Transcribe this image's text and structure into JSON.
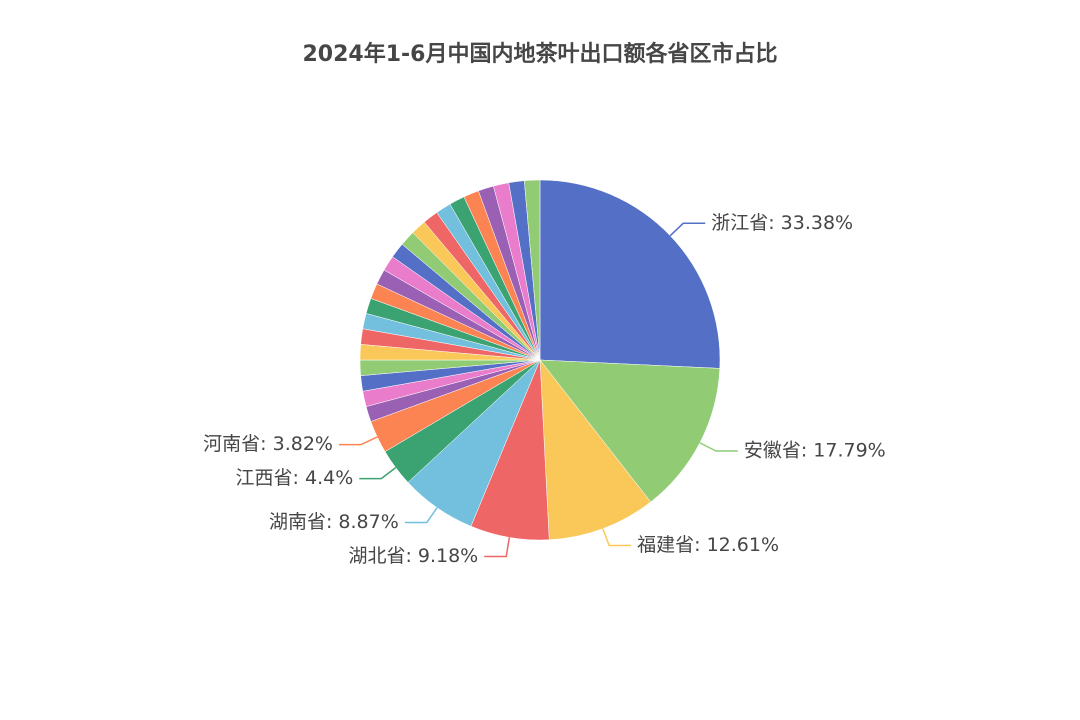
{
  "chart_data": {
    "type": "pie",
    "title": "2024年1-6月中国内地茶叶出口额各省区市占比",
    "values": [
      33.38,
      17.79,
      12.61,
      9.18,
      8.87,
      4.4,
      3.82,
      1.38,
      1.18,
      0.95,
      0.85,
      0.75,
      0.65,
      0.6,
      0.55,
      0.5,
      0.45,
      0.4,
      0.35,
      0.3,
      0.25,
      0.2,
      0.17,
      0.14,
      0.11,
      0.08,
      0.05,
      0.03,
      0.01
    ],
    "value_labels": [
      "浙江省: 33.38%",
      "安徽省: 17.79%",
      "福建省: 12.61%",
      "湖北省: 9.18%",
      "湖南省: 8.87%",
      "江西省: 4.4%",
      "河南省: 3.82%",
      null,
      null,
      null,
      null,
      null,
      null,
      null,
      null,
      null,
      null,
      null,
      null,
      null,
      null,
      null,
      null,
      null,
      null,
      null,
      null,
      null,
      null
    ],
    "colors": [
      "#5470c6",
      "#91cc75",
      "#fac858",
      "#ee6666",
      "#73c0de",
      "#3ba272",
      "#fc8452",
      "#9a60b4",
      "#ea7ccc"
    ],
    "min_angle": 5
  }
}
